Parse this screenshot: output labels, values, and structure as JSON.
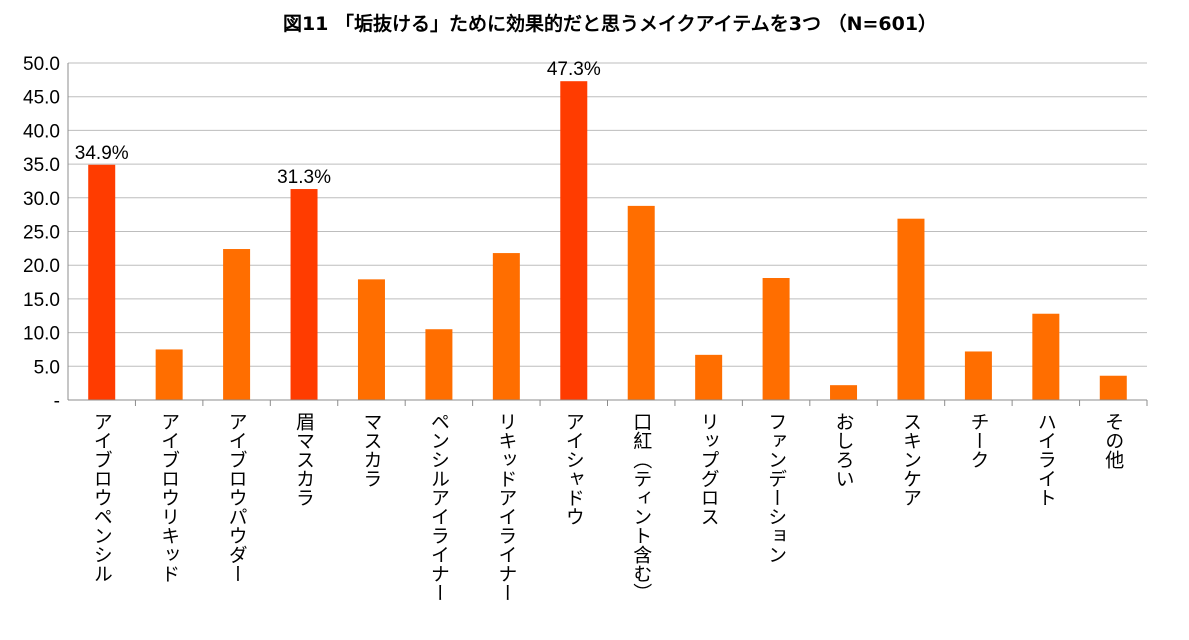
{
  "chart_data": {
    "type": "bar",
    "title": "図11 「垢抜ける」ために効果的だと思うメイクアイテムを3つ （N=601）",
    "xlabel": "",
    "ylabel": "",
    "ylim": [
      0,
      50
    ],
    "yticks": [
      "-",
      "5.0",
      "10.0",
      "15.0",
      "20.0",
      "25.0",
      "30.0",
      "35.0",
      "40.0",
      "45.0",
      "50.0"
    ],
    "grid": true,
    "categories": [
      "アイブロウペンシル",
      "アイブロウリキッド",
      "アイブロウパウダー",
      "眉マスカラ",
      "マスカラ",
      "ペンシルアイライナー",
      "リキッドアイライナー",
      "アイシャドウ",
      "口紅（ティント含む）",
      "リップグロス",
      "ファンデーション",
      "おしろい",
      "スキンケア",
      "チーク",
      "ハイライト",
      "その他"
    ],
    "values": [
      34.9,
      7.5,
      22.4,
      31.3,
      17.9,
      10.5,
      21.8,
      47.3,
      28.8,
      6.7,
      18.1,
      2.2,
      26.9,
      7.2,
      12.8,
      3.6
    ],
    "highlight": [
      true,
      false,
      false,
      true,
      false,
      false,
      false,
      true,
      false,
      false,
      false,
      false,
      false,
      false,
      false,
      false
    ],
    "data_labels": [
      "34.9%",
      "",
      "",
      "31.3%",
      "",
      "",
      "",
      "47.3%",
      "",
      "",
      "",
      "",
      "",
      "",
      "",
      ""
    ],
    "colors": {
      "bar": "#ff6e00",
      "highlight": "#ff3c00"
    }
  }
}
